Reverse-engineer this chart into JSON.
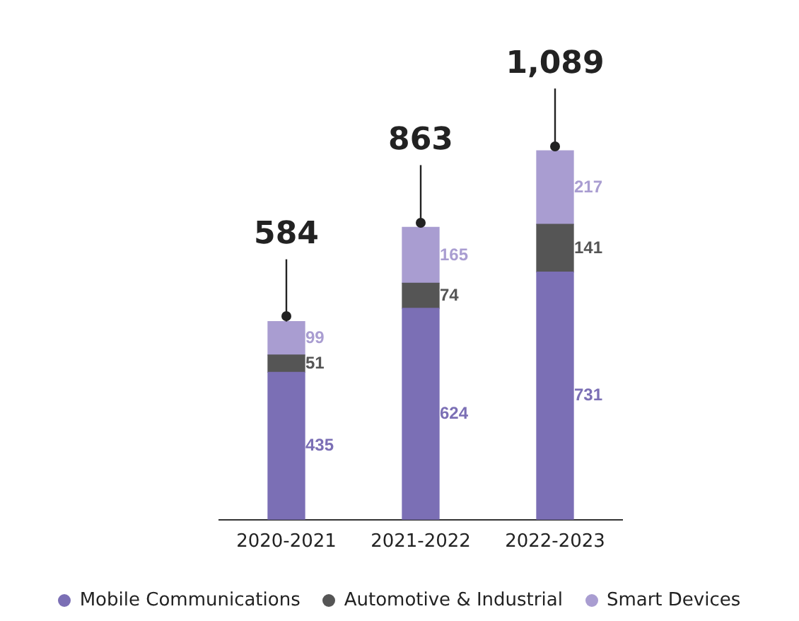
{
  "chart_data": {
    "type": "bar",
    "stacked": true,
    "categories": [
      "2020-2021",
      "2021-2022",
      "2022-2023"
    ],
    "series": [
      {
        "name": "Mobile Communications",
        "color": "#7b6fb5",
        "values": [
          435,
          624,
          731
        ]
      },
      {
        "name": "Automotive & Industrial",
        "color": "#555555",
        "values": [
          51,
          74,
          141
        ]
      },
      {
        "name": "Smart Devices",
        "color": "#a99dd1",
        "values": [
          99,
          165,
          217
        ]
      }
    ],
    "totals": [
      "584",
      "863",
      "1,089"
    ],
    "data_labels": true,
    "grid": false,
    "legend": "bottom"
  }
}
